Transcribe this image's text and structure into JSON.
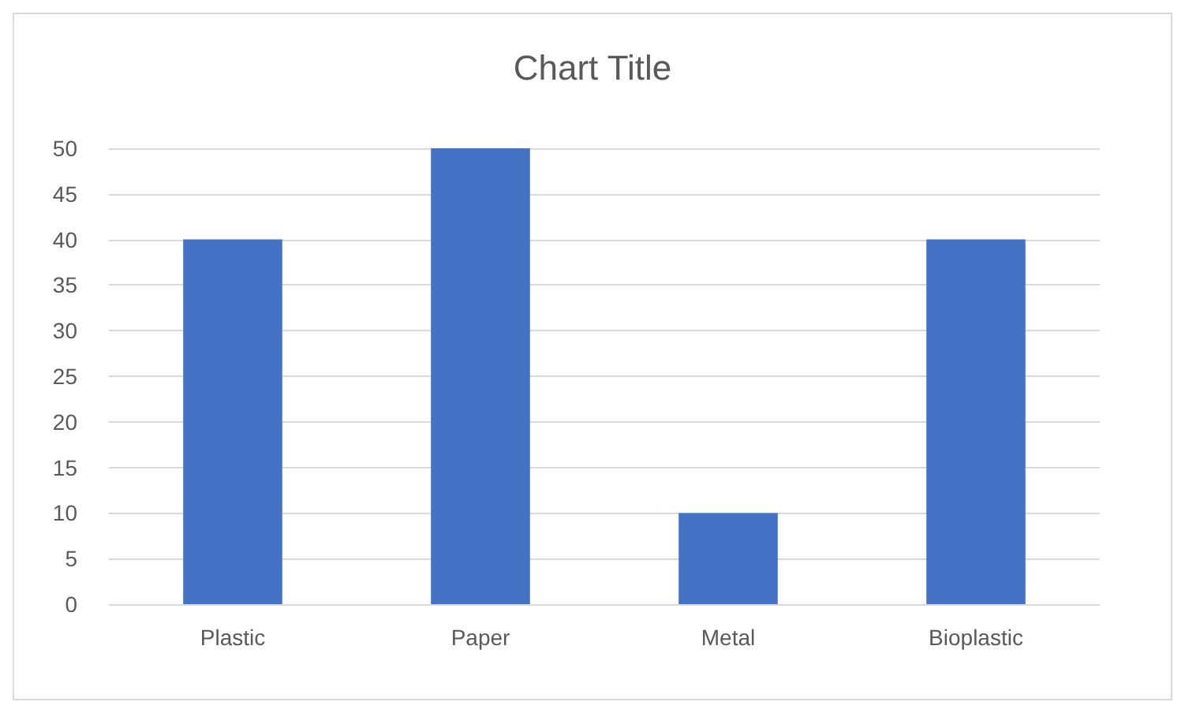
{
  "chart_data": {
    "type": "bar",
    "title": "Chart Title",
    "categories": [
      "Plastic",
      "Paper",
      "Metal",
      "Bioplastic"
    ],
    "values": [
      40,
      50,
      10,
      40
    ],
    "color": "#4472c4",
    "ylim": [
      0,
      50
    ],
    "yticks": [
      0,
      5,
      10,
      15,
      20,
      25,
      30,
      35,
      40,
      45,
      50
    ],
    "grid": true
  }
}
